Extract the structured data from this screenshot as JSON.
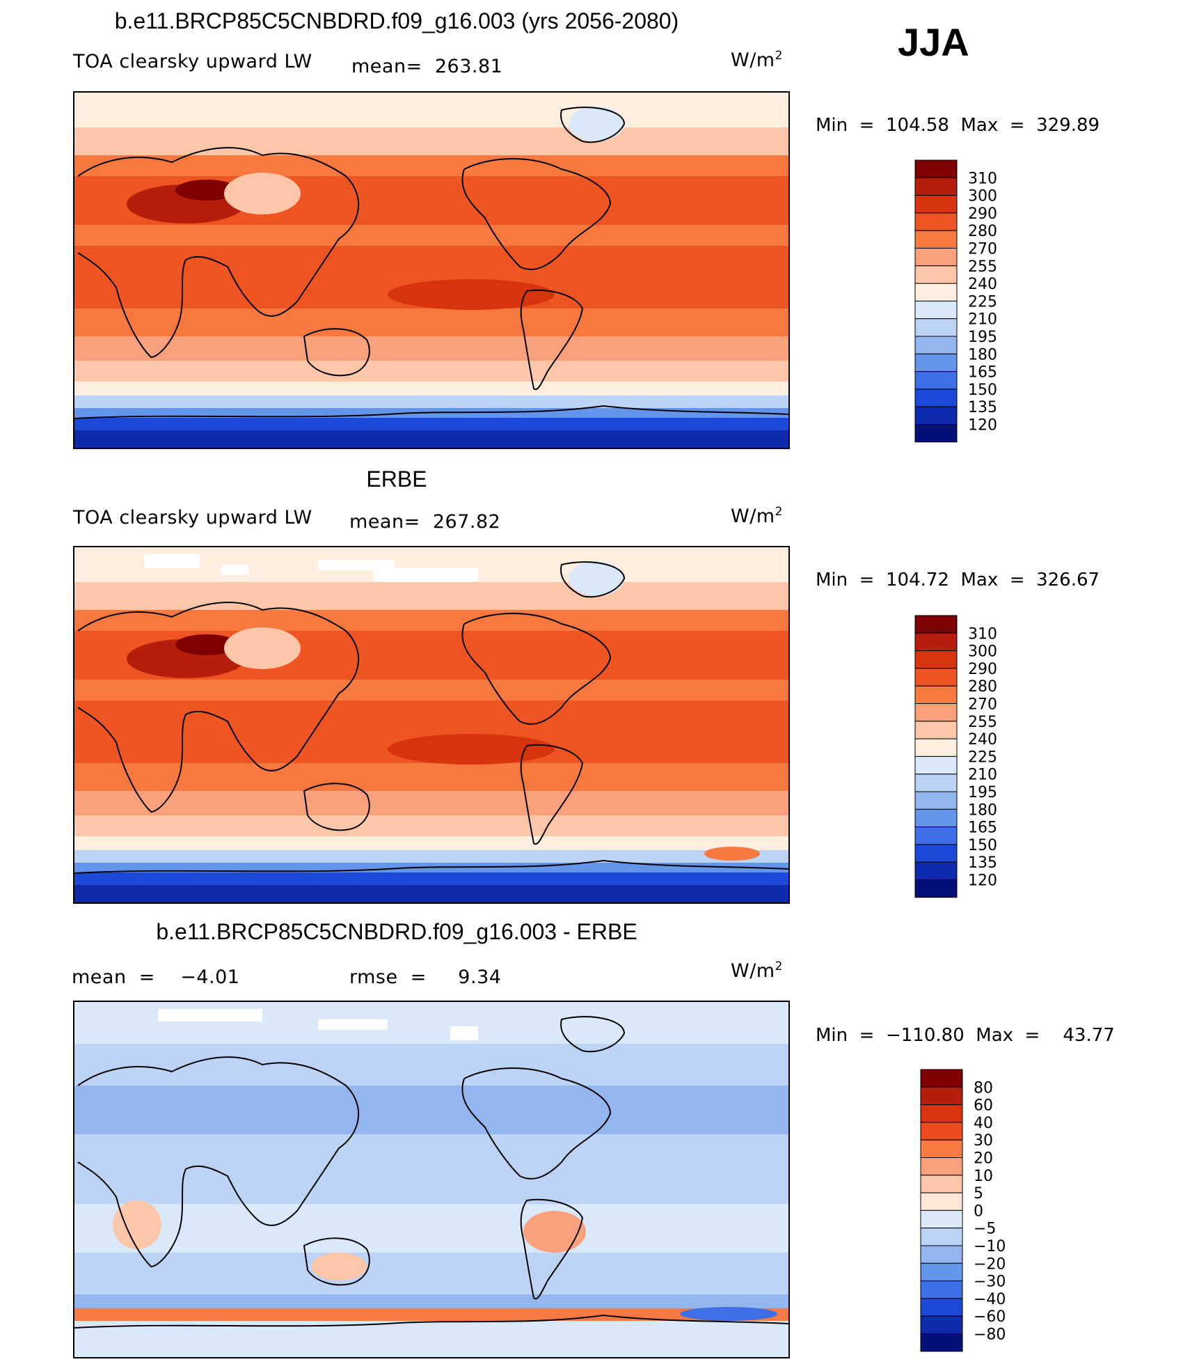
{
  "season": "JJA",
  "units_label": "W/m",
  "units_sup": "2",
  "chart_data": [
    {
      "type": "heatmap",
      "title": "b.e11.BRCP85C5CNBDRD.f09_g16.003 (yrs 2056-2080)",
      "variable": "TOA clearsky upward LW",
      "stat_text": "mean=  263.81",
      "minmax_text": "Min  =  104.58  Max  =  329.89",
      "levels": [
        "310",
        "300",
        "290",
        "280",
        "270",
        "255",
        "240",
        "225",
        "210",
        "195",
        "180",
        "165",
        "150",
        "135",
        "120"
      ],
      "colors": [
        "#7f0000",
        "#b51e0a",
        "#d7330e",
        "#ef5423",
        "#f7793f",
        "#f9a07c",
        "#fcc6a8",
        "#fdeee0",
        "#d9e9f9",
        "#bcd3f5",
        "#94b6ef",
        "#6495ed",
        "#3f6fe6",
        "#1e48d7",
        "#0f2bad",
        "#05107a"
      ]
    },
    {
      "type": "heatmap",
      "title": "ERBE",
      "variable": "TOA clearsky upward LW",
      "stat_text": "mean=  267.82",
      "minmax_text": "Min  =  104.72  Max  =  326.67",
      "levels": [
        "310",
        "300",
        "290",
        "280",
        "270",
        "255",
        "240",
        "225",
        "210",
        "195",
        "180",
        "165",
        "150",
        "135",
        "120"
      ],
      "colors": [
        "#7f0000",
        "#b51e0a",
        "#d7330e",
        "#ef5423",
        "#f7793f",
        "#f9a07c",
        "#fcc6a8",
        "#fdeee0",
        "#d9e9f9",
        "#bcd3f5",
        "#94b6ef",
        "#6495ed",
        "#3f6fe6",
        "#1e48d7",
        "#0f2bad",
        "#05107a"
      ]
    },
    {
      "type": "heatmap",
      "title": "b.e11.BRCP85C5CNBDRD.f09_g16.003 - ERBE",
      "mean_text": "mean  =    −4.01",
      "rmse_text": "rmse  =     9.34",
      "minmax_text": "Min  =  −110.80  Max  =    43.77",
      "levels": [
        "80",
        "60",
        "40",
        "30",
        "20",
        "10",
        "5",
        "0",
        "−5",
        "−10",
        "−20",
        "−30",
        "−40",
        "−60",
        "−80"
      ],
      "colors": [
        "#7f0000",
        "#b51e0a",
        "#d7330e",
        "#f04a20",
        "#f77a45",
        "#f9a07c",
        "#fcc6a8",
        "#fde6d6",
        "#d9e9f9",
        "#bcd3f5",
        "#94b6ef",
        "#6495ed",
        "#3f6fe6",
        "#1e48d7",
        "#0f2bad",
        "#05107a"
      ]
    }
  ]
}
